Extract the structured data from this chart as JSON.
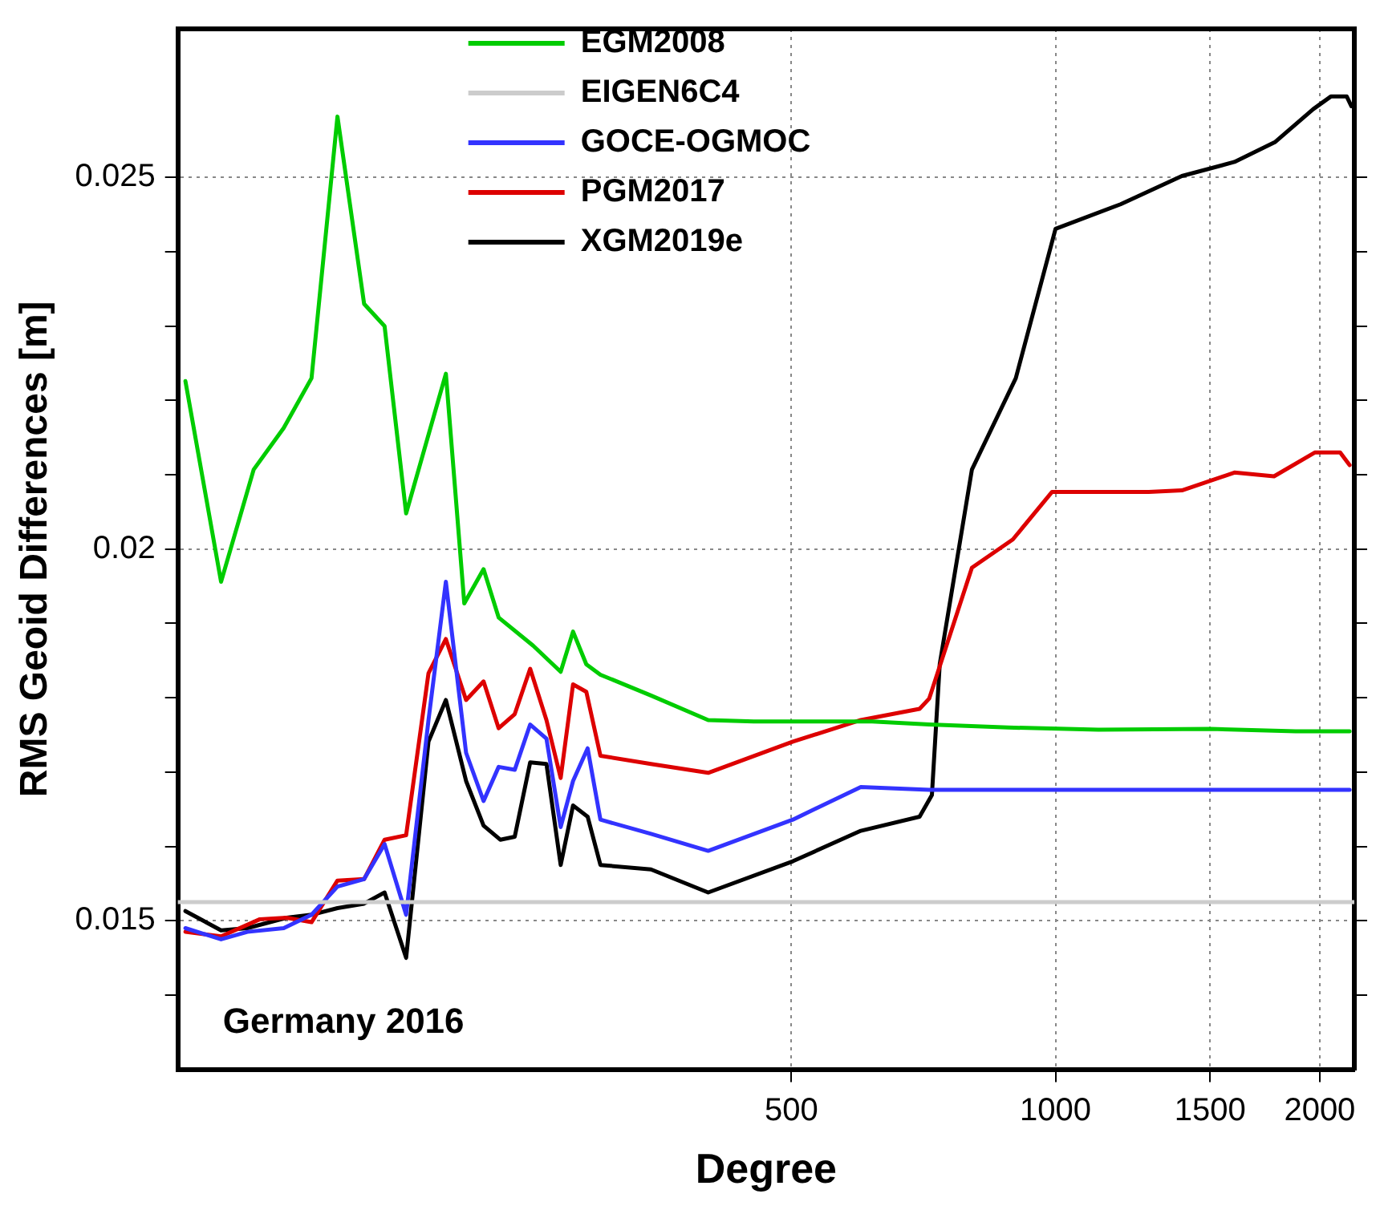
{
  "chart_data": {
    "type": "line",
    "xlabel": "Degree",
    "ylabel": "RMS Geoid Differences [m]",
    "log": "x",
    "grid": true,
    "legend": "top",
    "line_style": "solid",
    "marker": "none",
    "xlim": [
      100,
      2190
    ],
    "xticks": [
      500,
      1000,
      1500,
      2000
    ],
    "ylim": [
      0.013,
      0.027
    ],
    "yticks": [
      {
        "value": 0.014,
        "label": null
      },
      0.015,
      {
        "value": 0.016,
        "label": null
      },
      {
        "value": 0.017,
        "label": null
      },
      {
        "value": 0.018,
        "label": null
      },
      {
        "value": 0.019,
        "label": null
      },
      0.02,
      {
        "value": 0.021,
        "label": null
      },
      {
        "value": 0.022,
        "label": null
      },
      {
        "value": 0.023,
        "label": null
      },
      {
        "value": 0.024,
        "label": null
      },
      0.025
    ],
    "annotations": [
      "Germany 2016"
    ],
    "series": [
      {
        "name": "EGM2008",
        "color": "#00cc00",
        "x": [
          102,
          112,
          122,
          132,
          142,
          152,
          163,
          172,
          182,
          202,
          212,
          223,
          232,
          254,
          273,
          282,
          292,
          303,
          346,
          402,
          453,
          618,
          718,
          883,
          1119,
          1502,
          1878,
          2163
        ],
        "values": [
          0.02226,
          0.01956,
          0.02107,
          0.02163,
          0.0223,
          0.02582,
          0.0233,
          0.023,
          0.02048,
          0.02236,
          0.01927,
          0.01973,
          0.01908,
          0.0187,
          0.01835,
          0.01889,
          0.01845,
          0.01831,
          0.01803,
          0.0177,
          0.01768,
          0.01768,
          0.01764,
          0.0176,
          0.01757,
          0.01758,
          0.01755,
          0.01755
        ]
      },
      {
        "name": "EIGEN6C4",
        "color": "#cccccc",
        "x": [
          100,
          2190
        ],
        "values": [
          0.01525,
          0.01525
        ]
      },
      {
        "name": "GOCE-OGMOC",
        "color": "#3333ff",
        "x": [
          102,
          112,
          120,
          132,
          142,
          152,
          163,
          172,
          182,
          193,
          202,
          213,
          223,
          232,
          242,
          252,
          263,
          273,
          282,
          293,
          303,
          346,
          402,
          502,
          600,
          718,
          2163
        ],
        "values": [
          0.0149,
          0.01475,
          0.01485,
          0.0149,
          0.01508,
          0.01546,
          0.01556,
          0.01603,
          0.01508,
          0.0177,
          0.01956,
          0.01726,
          0.01661,
          0.01707,
          0.01703,
          0.01764,
          0.01745,
          0.01626,
          0.01688,
          0.01732,
          0.01636,
          0.01617,
          0.01594,
          0.01636,
          0.0168,
          0.01676,
          0.01676
        ]
      },
      {
        "name": "PGM2017",
        "color": "#dd0000",
        "x": [
          102,
          112,
          124,
          133,
          142,
          152,
          163,
          172,
          182,
          193,
          202,
          213,
          223,
          232,
          242,
          252,
          263,
          273,
          282,
          292,
          303,
          346,
          402,
          502,
          600,
          700,
          718,
          803,
          894,
          991,
          1277,
          1393,
          1599,
          1774,
          1974,
          2110,
          2163
        ],
        "values": [
          0.01485,
          0.01479,
          0.01502,
          0.01504,
          0.01498,
          0.01554,
          0.01556,
          0.01609,
          0.01615,
          0.01833,
          0.01879,
          0.01797,
          0.01822,
          0.01759,
          0.01778,
          0.01839,
          0.0177,
          0.01692,
          0.01818,
          0.01808,
          0.01722,
          0.01711,
          0.01699,
          0.01741,
          0.0177,
          0.01785,
          0.01799,
          0.01975,
          0.02013,
          0.02077,
          0.02077,
          0.02079,
          0.02103,
          0.02098,
          0.0213,
          0.0213,
          0.02113
        ]
      },
      {
        "name": "XGM2019e",
        "color": "#000000",
        "x": [
          102,
          112,
          120,
          133,
          142,
          152,
          163,
          172,
          182,
          193,
          202,
          213,
          223,
          233,
          242,
          252,
          263,
          273,
          282,
          293,
          303,
          346,
          402,
          502,
          600,
          700,
          723,
          738,
          803,
          901,
          1000,
          1186,
          1393,
          1599,
          1780,
          1966,
          2059,
          2147,
          2173
        ],
        "values": [
          0.01513,
          0.01487,
          0.0149,
          0.01504,
          0.01508,
          0.01517,
          0.01523,
          0.01538,
          0.0145,
          0.01741,
          0.01797,
          0.01688,
          0.01628,
          0.01609,
          0.01613,
          0.01713,
          0.01711,
          0.01575,
          0.01655,
          0.0164,
          0.01575,
          0.01569,
          0.01538,
          0.0158,
          0.01621,
          0.0164,
          0.01669,
          0.01845,
          0.02107,
          0.0223,
          0.02431,
          0.02464,
          0.02502,
          0.02521,
          0.02548,
          0.02592,
          0.02609,
          0.02609,
          0.02596
        ]
      }
    ]
  }
}
